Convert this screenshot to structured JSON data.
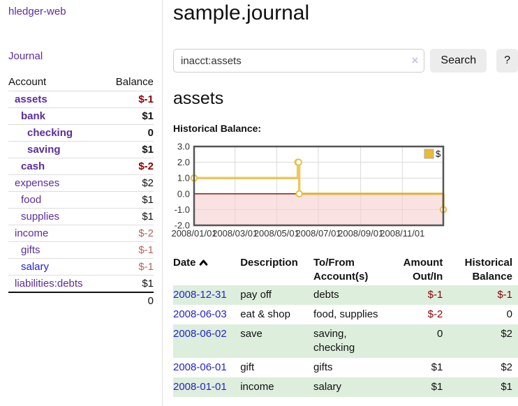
{
  "colors": {
    "link_purple": "#5b2d9b",
    "link_blue": "#2323cf",
    "negative_strong": "#8b0000",
    "negative_soft": "#b96262",
    "row_green": "#ddeedd",
    "chart_gold": "#e7bf44",
    "chart_negative_zone": "#f6cfcf"
  },
  "sidebar": {
    "brand": "hledger-web",
    "nav_journal": "Journal",
    "accounts_table": {
      "col_account": "Account",
      "col_balance": "Balance",
      "rows": [
        {
          "name": "assets",
          "depth": 1,
          "bold": true,
          "balance": "$-1",
          "balance_style": "neg-strong"
        },
        {
          "name": "bank",
          "depth": 2,
          "bold": true,
          "balance": "$1",
          "balance_style": "pos"
        },
        {
          "name": "checking",
          "depth": 3,
          "bold": true,
          "balance": "0",
          "balance_style": "pos"
        },
        {
          "name": "saving",
          "depth": 3,
          "bold": true,
          "balance": "$1",
          "balance_style": "pos"
        },
        {
          "name": "cash",
          "depth": 2,
          "bold": true,
          "balance": "$-2",
          "balance_style": "neg-strong"
        },
        {
          "name": "expenses",
          "depth": 1,
          "bold": false,
          "balance": "$2",
          "balance_style": "pos"
        },
        {
          "name": "food",
          "depth": 2,
          "bold": false,
          "balance": "$1",
          "balance_style": "pos"
        },
        {
          "name": "supplies",
          "depth": 2,
          "bold": false,
          "balance": "$1",
          "balance_style": "pos"
        },
        {
          "name": "income",
          "depth": 1,
          "bold": false,
          "balance": "$-2",
          "balance_style": "neg-soft"
        },
        {
          "name": "gifts",
          "depth": 2,
          "bold": false,
          "balance": "$-1",
          "balance_style": "neg-soft"
        },
        {
          "name": "salary",
          "depth": 2,
          "bold": false,
          "link_color": "blue",
          "balance": "$-1",
          "balance_style": "neg-soft"
        },
        {
          "name": "liabilities:debts",
          "depth": 1,
          "bold": false,
          "balance": "$1",
          "balance_style": "pos"
        }
      ],
      "total": "0"
    }
  },
  "main": {
    "title": "sample.journal",
    "search": {
      "value": "inacct:assets",
      "clear_icon": "×",
      "button": "Search",
      "help_button": "?"
    },
    "account_heading": "assets",
    "chart_label": "Historical Balance:"
  },
  "chart_data": {
    "type": "line",
    "step": true,
    "title": "Historical Balance",
    "series": [
      {
        "name": "$",
        "points": [
          [
            "2008-01-01",
            1
          ],
          [
            "2008-06-01",
            2
          ],
          [
            "2008-06-02",
            2
          ],
          [
            "2008-06-03",
            0
          ],
          [
            "2008-12-31",
            -1
          ]
        ]
      }
    ],
    "x_range": [
      "2008-01-01",
      "2008-12-31"
    ],
    "ylim": [
      -2,
      3
    ],
    "y_ticks": [
      "3.0",
      "2.0",
      "1.0",
      "0.0",
      "-1.0",
      "-2.0"
    ],
    "x_ticks": [
      "2008/01/01",
      "2008/03/01",
      "2008/05/01",
      "2008/07/01",
      "2008/09/01",
      "2008/11/01"
    ],
    "legend": [
      "$"
    ],
    "legend_position": "top-right",
    "grid": true,
    "line_color": "#e7bf44",
    "zero_line_color": "#8b0000",
    "negative_region_color": "#f6cfcf"
  },
  "register": {
    "headers": {
      "date": "Date",
      "description": "Description",
      "tofrom": "To/From Account(s)",
      "amount": "Amount Out/In",
      "balance": "Historical Balance"
    },
    "rows": [
      {
        "date": "2008-12-31",
        "description": "pay off",
        "accounts": "debts",
        "amount": "$-1",
        "amount_neg": true,
        "balance": "$-1",
        "balance_neg": true
      },
      {
        "date": "2008-06-03",
        "description": "eat & shop",
        "accounts": "food, supplies",
        "amount": "$-2",
        "amount_neg": true,
        "balance": "0",
        "balance_neg": false
      },
      {
        "date": "2008-06-02",
        "description": "save",
        "accounts": "saving, checking",
        "amount": "0",
        "amount_neg": false,
        "balance": "$2",
        "balance_neg": false
      },
      {
        "date": "2008-06-01",
        "description": "gift",
        "accounts": "gifts",
        "amount": "$1",
        "amount_neg": false,
        "balance": "$2",
        "balance_neg": false
      },
      {
        "date": "2008-01-01",
        "description": "income",
        "accounts": "salary",
        "amount": "$1",
        "amount_neg": false,
        "balance": "$1",
        "balance_neg": false
      }
    ]
  }
}
